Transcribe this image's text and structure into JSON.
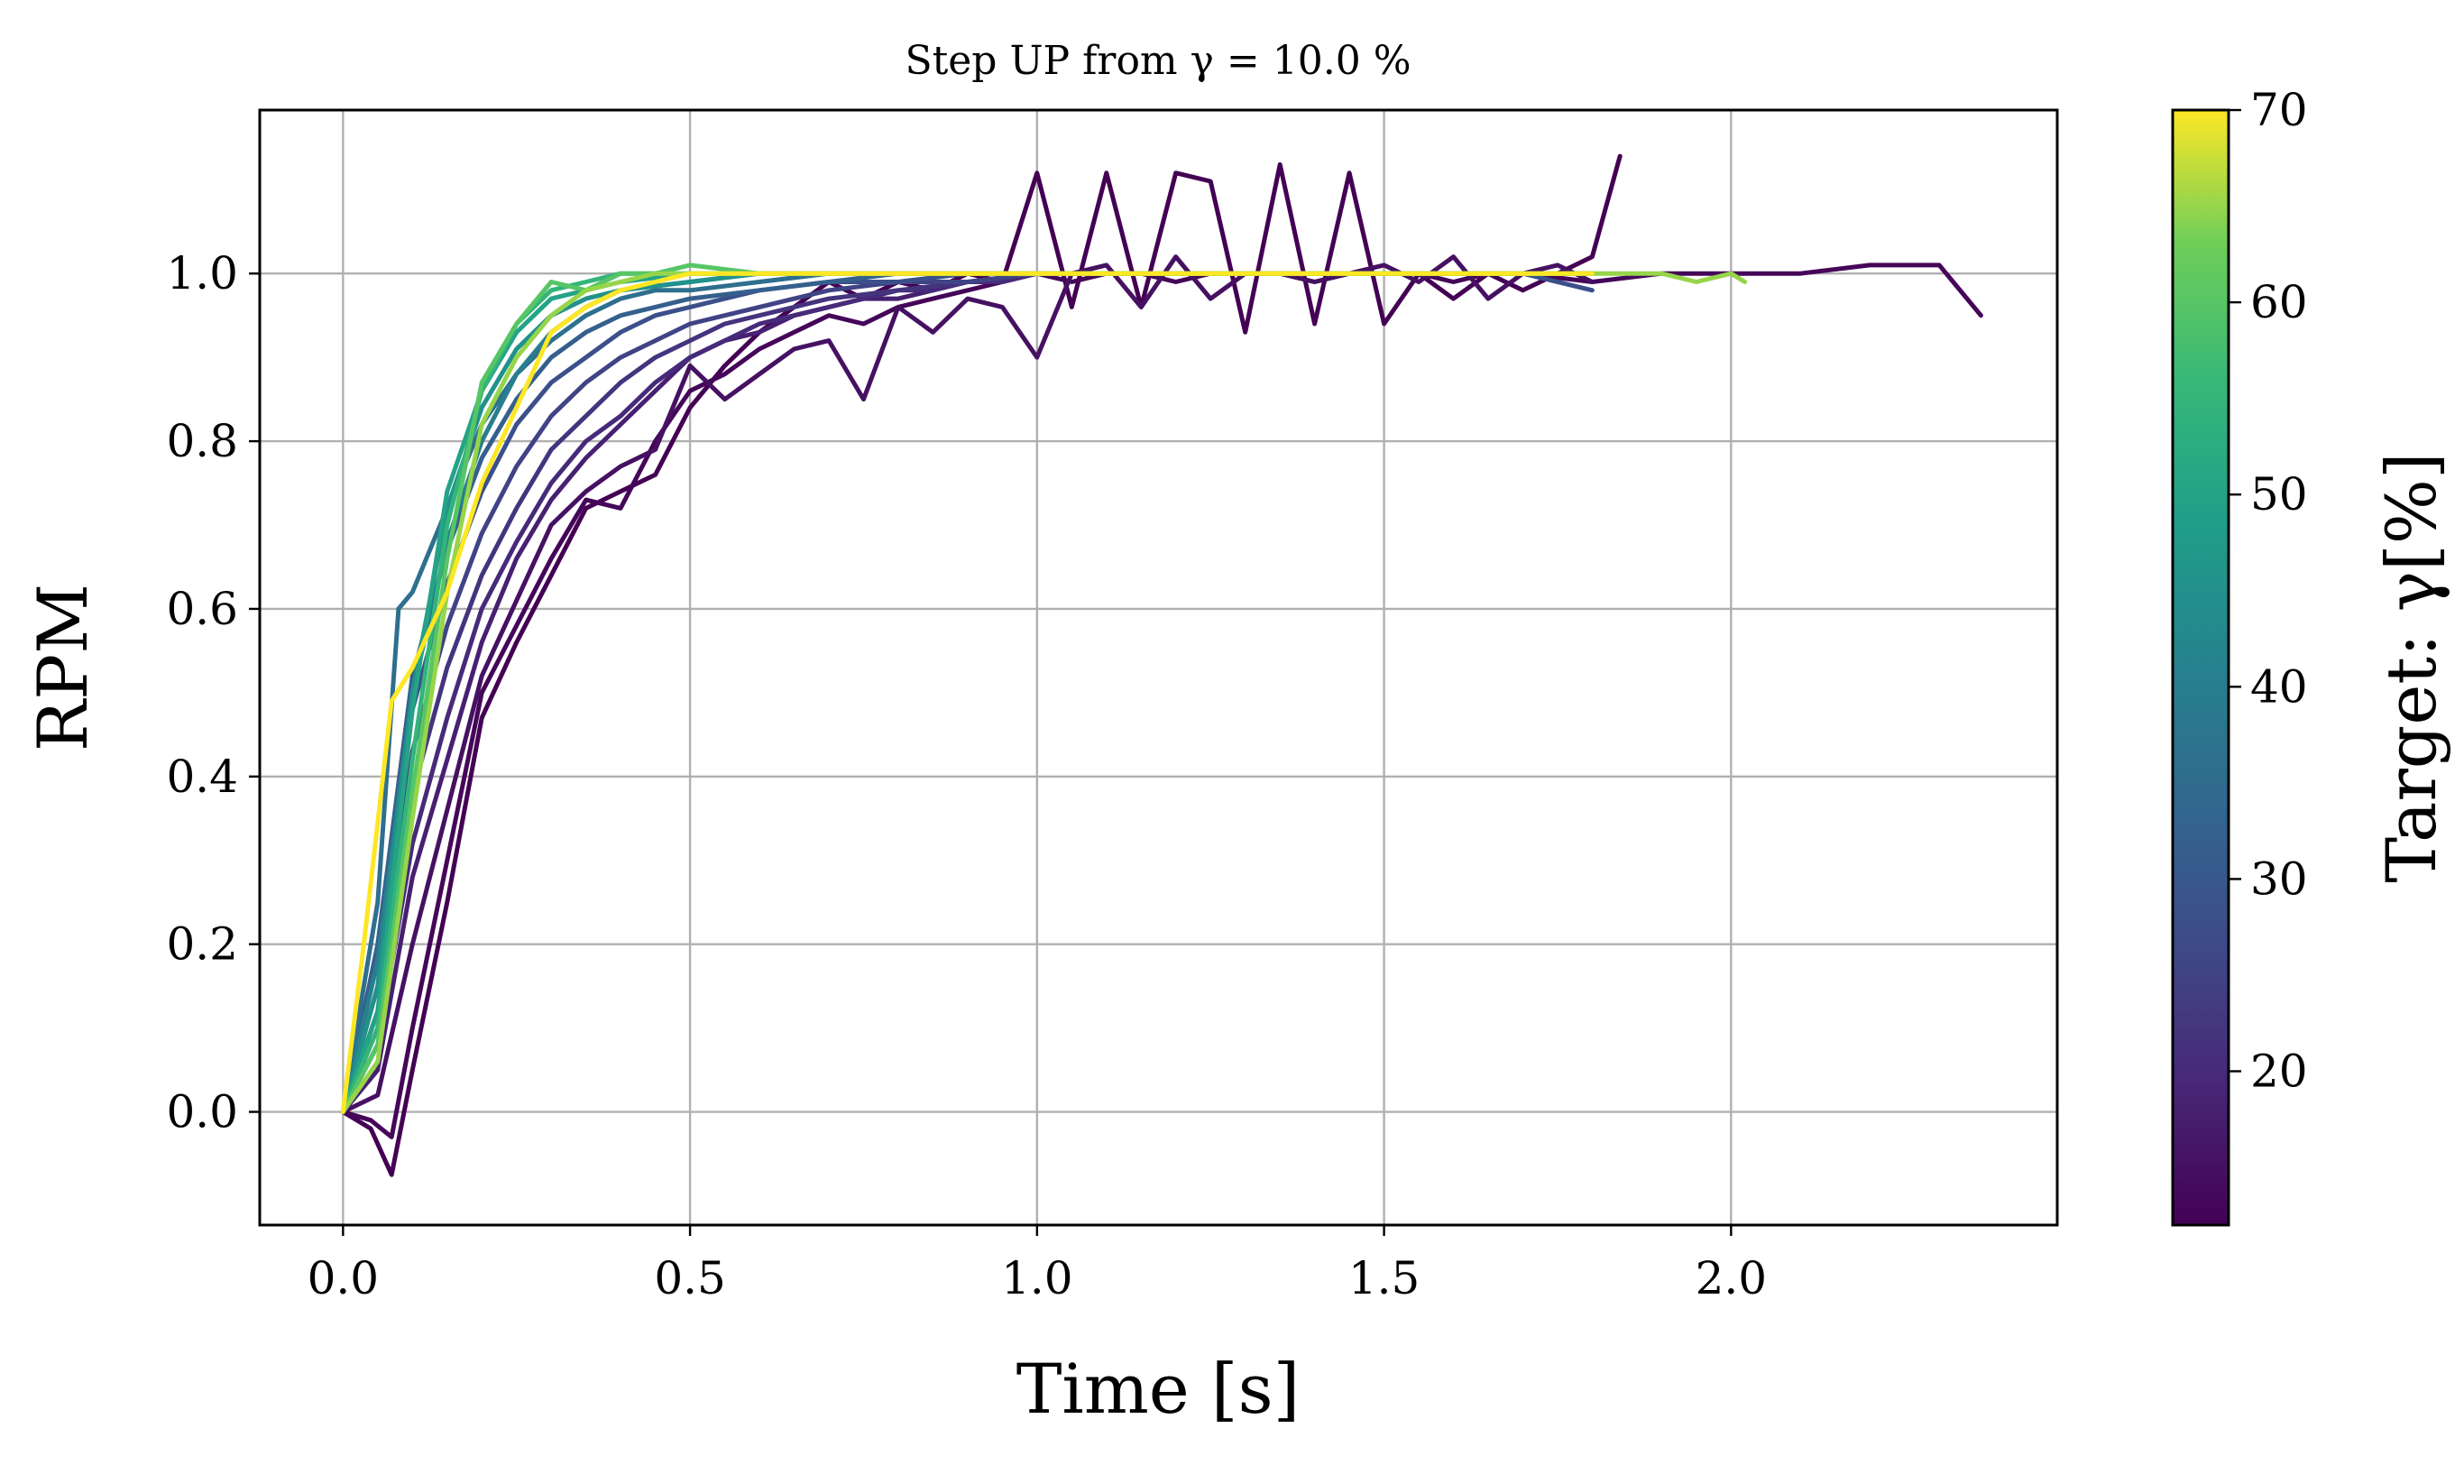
{
  "chart_data": {
    "type": "line",
    "title": "Step UP from γ = 10.0 %",
    "xlabel": "Time [s]",
    "ylabel": "RPM",
    "xlim": [
      -0.12,
      2.47
    ],
    "ylim": [
      -0.135,
      1.195
    ],
    "xticks": [
      0.0,
      0.5,
      1.0,
      1.5,
      2.0
    ],
    "xtick_labels": [
      "0.0",
      "0.5",
      "1.0",
      "1.5",
      "2.0"
    ],
    "yticks": [
      0.0,
      0.2,
      0.4,
      0.6,
      0.8,
      1.0
    ],
    "ytick_labels": [
      "0.0",
      "0.2",
      "0.4",
      "0.6",
      "0.8",
      "1.0"
    ],
    "grid": true,
    "colormap": "viridis",
    "colorbar": {
      "label": "Target: γ[%]",
      "min": 12,
      "max": 70,
      "ticks": [
        20,
        30,
        40,
        50,
        60,
        70
      ],
      "tick_labels": [
        "20",
        "30",
        "40",
        "50",
        "60",
        "70"
      ]
    },
    "series": [
      {
        "target": 12,
        "x": [
          0,
          0.04,
          0.07,
          0.1,
          0.15,
          0.2,
          0.25,
          0.3,
          0.35,
          0.4,
          0.45,
          0.5,
          0.55,
          0.6,
          0.65,
          0.7,
          0.75,
          0.8,
          0.85,
          0.9,
          0.95,
          1.0,
          1.05,
          1.1,
          1.15,
          1.2,
          1.25,
          1.3,
          1.35,
          1.4,
          1.45,
          1.5,
          1.55,
          1.6,
          1.65,
          1.7,
          1.75,
          1.8,
          1.84
        ],
        "y": [
          0,
          -0.02,
          -0.075,
          0.05,
          0.25,
          0.47,
          0.56,
          0.64,
          0.72,
          0.74,
          0.76,
          0.84,
          0.89,
          0.93,
          0.96,
          0.99,
          0.97,
          0.99,
          0.98,
          1.0,
          0.99,
          1.12,
          0.96,
          1.12,
          0.96,
          1.12,
          1.11,
          0.93,
          1.13,
          0.94,
          1.12,
          0.94,
          1.0,
          0.97,
          1.0,
          0.98,
          1.0,
          1.02,
          1.14
        ]
      },
      {
        "target": 13,
        "x": [
          0,
          0.04,
          0.07,
          0.1,
          0.15,
          0.2,
          0.25,
          0.3,
          0.35,
          0.4,
          0.45,
          0.5,
          0.55,
          0.6,
          0.65,
          0.7,
          0.75,
          0.8,
          0.85,
          0.9,
          0.95,
          1.0,
          1.05,
          1.1,
          1.15,
          1.2,
          1.25,
          1.3,
          1.35,
          1.4,
          1.45,
          1.5,
          1.55,
          1.6,
          1.65,
          1.7,
          1.8,
          1.9,
          2.0,
          2.1,
          2.2,
          2.3,
          2.36
        ],
        "y": [
          0,
          -0.01,
          -0.03,
          0.1,
          0.3,
          0.5,
          0.58,
          0.66,
          0.73,
          0.72,
          0.8,
          0.86,
          0.88,
          0.91,
          0.93,
          0.95,
          0.94,
          0.96,
          0.97,
          0.98,
          0.99,
          1.0,
          0.99,
          1.0,
          1.0,
          0.99,
          1.0,
          1.0,
          1.0,
          0.99,
          1.0,
          1.0,
          1.0,
          0.99,
          1.0,
          1.0,
          0.99,
          1.0,
          1.0,
          1.0,
          1.01,
          1.01,
          0.95
        ]
      },
      {
        "target": 15,
        "x": [
          0,
          0.05,
          0.1,
          0.15,
          0.2,
          0.25,
          0.3,
          0.35,
          0.4,
          0.45,
          0.5,
          0.55,
          0.6,
          0.65,
          0.7,
          0.75,
          0.8,
          0.85,
          0.9,
          0.95,
          1.0,
          1.05,
          1.1,
          1.15,
          1.2,
          1.25,
          1.3,
          1.35,
          1.4,
          1.45,
          1.5,
          1.55,
          1.6,
          1.65,
          1.7,
          1.75,
          1.8
        ],
        "y": [
          0,
          0.02,
          0.2,
          0.36,
          0.52,
          0.61,
          0.7,
          0.74,
          0.77,
          0.79,
          0.89,
          0.85,
          0.88,
          0.91,
          0.92,
          0.85,
          0.96,
          0.93,
          0.97,
          0.96,
          0.9,
          1.0,
          1.01,
          0.96,
          1.02,
          0.97,
          1.0,
          1.0,
          0.99,
          1.0,
          1.01,
          0.99,
          1.02,
          0.97,
          1.0,
          1.01,
          0.99
        ]
      },
      {
        "target": 18,
        "x": [
          0,
          0.05,
          0.1,
          0.15,
          0.2,
          0.25,
          0.3,
          0.35,
          0.4,
          0.45,
          0.5,
          0.55,
          0.6,
          0.65,
          0.7,
          0.75,
          0.8,
          0.85,
          0.9,
          0.95,
          1.0,
          1.1,
          1.2,
          1.3,
          1.4,
          1.5,
          1.6,
          1.7,
          1.8
        ],
        "y": [
          0,
          0.05,
          0.28,
          0.42,
          0.56,
          0.66,
          0.73,
          0.78,
          0.82,
          0.86,
          0.9,
          0.92,
          0.93,
          0.95,
          0.96,
          0.97,
          0.97,
          0.98,
          0.99,
          0.99,
          1.0,
          1.0,
          1.0,
          1.0,
          1.0,
          1.0,
          1.0,
          1.0,
          1.0
        ]
      },
      {
        "target": 20,
        "x": [
          0,
          0.05,
          0.1,
          0.15,
          0.2,
          0.25,
          0.3,
          0.35,
          0.4,
          0.45,
          0.5,
          0.55,
          0.6,
          0.65,
          0.7,
          0.75,
          0.8,
          0.85,
          0.9,
          0.95,
          1.0,
          1.1,
          1.2,
          1.3,
          1.4,
          1.5,
          1.6,
          1.7,
          1.8
        ],
        "y": [
          0,
          0.08,
          0.32,
          0.47,
          0.6,
          0.68,
          0.75,
          0.8,
          0.83,
          0.87,
          0.9,
          0.92,
          0.94,
          0.95,
          0.96,
          0.97,
          0.98,
          0.98,
          0.99,
          0.99,
          1.0,
          1.0,
          1.0,
          1.0,
          1.0,
          1.0,
          1.0,
          1.0,
          1.0
        ]
      },
      {
        "target": 22,
        "x": [
          0,
          0.05,
          0.1,
          0.15,
          0.2,
          0.25,
          0.3,
          0.35,
          0.4,
          0.45,
          0.5,
          0.55,
          0.6,
          0.65,
          0.7,
          0.8,
          0.9,
          1.0,
          1.1,
          1.2,
          1.3,
          1.4,
          1.5,
          1.6,
          1.7,
          1.8
        ],
        "y": [
          0,
          0.1,
          0.38,
          0.53,
          0.64,
          0.72,
          0.79,
          0.83,
          0.87,
          0.9,
          0.92,
          0.94,
          0.95,
          0.96,
          0.97,
          0.98,
          0.99,
          1.0,
          1.0,
          1.0,
          1.0,
          1.0,
          1.0,
          1.0,
          1.0,
          1.0
        ]
      },
      {
        "target": 25,
        "x": [
          0,
          0.05,
          0.1,
          0.15,
          0.2,
          0.25,
          0.3,
          0.35,
          0.4,
          0.45,
          0.5,
          0.55,
          0.6,
          0.65,
          0.7,
          0.8,
          0.9,
          1.0,
          1.1,
          1.2,
          1.3,
          1.4,
          1.5,
          1.6,
          1.7,
          1.8
        ],
        "y": [
          0,
          0.12,
          0.43,
          0.58,
          0.69,
          0.77,
          0.83,
          0.87,
          0.9,
          0.92,
          0.94,
          0.95,
          0.96,
          0.97,
          0.98,
          0.99,
          0.99,
          1.0,
          1.0,
          1.0,
          1.0,
          1.0,
          1.0,
          1.0,
          1.0,
          1.0
        ]
      },
      {
        "target": 28,
        "x": [
          0,
          0.05,
          0.1,
          0.15,
          0.2,
          0.25,
          0.3,
          0.35,
          0.4,
          0.45,
          0.5,
          0.55,
          0.6,
          0.7,
          0.8,
          0.9,
          1.0,
          1.1,
          1.2,
          1.3,
          1.4,
          1.5,
          1.6,
          1.7,
          1.8
        ],
        "y": [
          0,
          0.15,
          0.48,
          0.63,
          0.74,
          0.82,
          0.87,
          0.9,
          0.93,
          0.95,
          0.96,
          0.97,
          0.98,
          0.99,
          0.99,
          1.0,
          1.0,
          1.0,
          1.0,
          1.0,
          1.0,
          1.0,
          1.0,
          1.0,
          0.98
        ]
      },
      {
        "target": 32,
        "x": [
          0,
          0.05,
          0.1,
          0.15,
          0.2,
          0.25,
          0.3,
          0.35,
          0.4,
          0.45,
          0.5,
          0.6,
          0.7,
          0.8,
          0.9,
          1.0,
          1.1,
          1.2,
          1.3,
          1.4,
          1.5,
          1.6,
          1.7,
          1.8
        ],
        "y": [
          0,
          0.2,
          0.52,
          0.67,
          0.78,
          0.85,
          0.9,
          0.93,
          0.95,
          0.96,
          0.97,
          0.98,
          0.99,
          1.0,
          1.0,
          1.0,
          1.0,
          1.0,
          1.0,
          1.0,
          1.0,
          1.0,
          1.0,
          1.0
        ]
      },
      {
        "target": 36,
        "x": [
          0,
          0.05,
          0.08,
          0.1,
          0.15,
          0.2,
          0.25,
          0.3,
          0.35,
          0.4,
          0.45,
          0.5,
          0.6,
          0.7,
          0.8,
          0.9,
          1.0,
          1.1,
          1.2,
          1.3,
          1.4,
          1.5,
          1.6,
          1.7,
          1.8
        ],
        "y": [
          0,
          0.25,
          0.6,
          0.62,
          0.72,
          0.82,
          0.88,
          0.92,
          0.95,
          0.97,
          0.98,
          0.98,
          0.99,
          1.0,
          1.0,
          1.0,
          1.0,
          1.0,
          1.0,
          1.0,
          1.0,
          1.0,
          1.0,
          1.0,
          1.0
        ]
      },
      {
        "target": 40,
        "x": [
          0,
          0.05,
          0.1,
          0.15,
          0.2,
          0.25,
          0.3,
          0.35,
          0.4,
          0.5,
          0.6,
          0.7,
          0.8,
          0.9,
          1.0,
          1.1,
          1.2,
          1.3,
          1.4,
          1.5,
          1.6,
          1.7,
          1.8
        ],
        "y": [
          0,
          0.18,
          0.5,
          0.68,
          0.8,
          0.88,
          0.93,
          0.96,
          0.98,
          0.99,
          1.0,
          1.0,
          1.0,
          1.0,
          1.0,
          1.0,
          1.0,
          1.0,
          1.0,
          1.0,
          1.0,
          1.0,
          1.0
        ]
      },
      {
        "target": 45,
        "x": [
          0,
          0.05,
          0.1,
          0.15,
          0.2,
          0.25,
          0.3,
          0.35,
          0.4,
          0.5,
          0.6,
          0.7,
          0.8,
          0.9,
          1.0,
          1.1,
          1.2,
          1.3,
          1.4,
          1.5,
          1.6,
          1.7,
          1.8
        ],
        "y": [
          0,
          0.15,
          0.5,
          0.72,
          0.84,
          0.91,
          0.95,
          0.97,
          0.98,
          0.99,
          1.0,
          1.0,
          1.0,
          1.0,
          1.0,
          1.0,
          1.0,
          1.0,
          1.0,
          1.0,
          1.0,
          1.0,
          1.0
        ]
      },
      {
        "target": 50,
        "x": [
          0,
          0.05,
          0.1,
          0.15,
          0.2,
          0.25,
          0.3,
          0.35,
          0.4,
          0.5,
          0.6,
          0.7,
          0.8,
          0.9,
          1.0,
          1.1,
          1.2,
          1.3,
          1.4,
          1.5,
          1.6,
          1.7,
          1.8
        ],
        "y": [
          0,
          0.12,
          0.48,
          0.74,
          0.86,
          0.93,
          0.97,
          0.98,
          0.99,
          1.0,
          1.0,
          1.0,
          1.0,
          1.0,
          1.0,
          1.0,
          1.0,
          1.0,
          1.0,
          1.0,
          1.0,
          1.0,
          1.0
        ]
      },
      {
        "target": 55,
        "x": [
          0,
          0.05,
          0.1,
          0.15,
          0.2,
          0.25,
          0.3,
          0.35,
          0.4,
          0.45,
          0.5,
          0.6,
          0.7,
          0.8,
          0.9,
          1.0,
          1.1,
          1.2,
          1.3,
          1.4,
          1.5,
          1.6,
          1.7,
          1.8
        ],
        "y": [
          0,
          0.1,
          0.42,
          0.7,
          0.86,
          0.94,
          0.98,
          0.99,
          1.0,
          1.0,
          1.0,
          1.0,
          1.0,
          1.0,
          1.0,
          1.0,
          1.0,
          1.0,
          1.0,
          1.0,
          1.0,
          1.0,
          1.0,
          1.0
        ]
      },
      {
        "target": 60,
        "x": [
          0,
          0.05,
          0.1,
          0.15,
          0.2,
          0.25,
          0.3,
          0.35,
          0.4,
          0.45,
          0.5,
          0.6,
          0.7,
          0.8,
          0.9,
          1.0,
          1.1,
          1.2,
          1.3,
          1.4,
          1.5,
          1.6,
          1.7,
          1.8
        ],
        "y": [
          0,
          0.08,
          0.38,
          0.66,
          0.87,
          0.94,
          0.99,
          0.98,
          1.0,
          1.0,
          1.01,
          1.0,
          1.0,
          1.0,
          1.0,
          1.0,
          1.0,
          1.0,
          1.0,
          1.0,
          1.0,
          1.0,
          1.0,
          1.0
        ]
      },
      {
        "target": 65,
        "x": [
          0,
          0.05,
          0.1,
          0.15,
          0.2,
          0.25,
          0.3,
          0.35,
          0.4,
          0.45,
          0.5,
          0.6,
          0.7,
          0.8,
          0.9,
          1.0,
          1.1,
          1.2,
          1.3,
          1.4,
          1.5,
          1.6,
          1.7,
          1.8,
          1.9,
          1.95,
          2.0,
          2.02
        ],
        "y": [
          0,
          0.06,
          0.35,
          0.62,
          0.82,
          0.9,
          0.95,
          0.98,
          0.99,
          1.0,
          1.0,
          1.0,
          1.0,
          1.0,
          1.0,
          1.0,
          1.0,
          1.0,
          1.0,
          1.0,
          1.0,
          1.0,
          1.0,
          1.0,
          1.0,
          0.99,
          1.0,
          0.99
        ]
      },
      {
        "target": 70,
        "x": [
          0,
          0.03,
          0.07,
          0.1,
          0.15,
          0.2,
          0.25,
          0.3,
          0.35,
          0.4,
          0.45,
          0.5,
          0.6,
          0.7,
          0.8,
          0.9,
          1.0,
          1.1,
          1.2,
          1.3,
          1.4,
          1.5,
          1.6,
          1.7,
          1.8
        ],
        "y": [
          0,
          0.2,
          0.49,
          0.53,
          0.62,
          0.75,
          0.84,
          0.93,
          0.96,
          0.98,
          0.99,
          1.0,
          1.0,
          1.0,
          1.0,
          1.0,
          1.0,
          1.0,
          1.0,
          1.0,
          1.0,
          1.0,
          1.0,
          1.0,
          1.0
        ]
      }
    ]
  }
}
